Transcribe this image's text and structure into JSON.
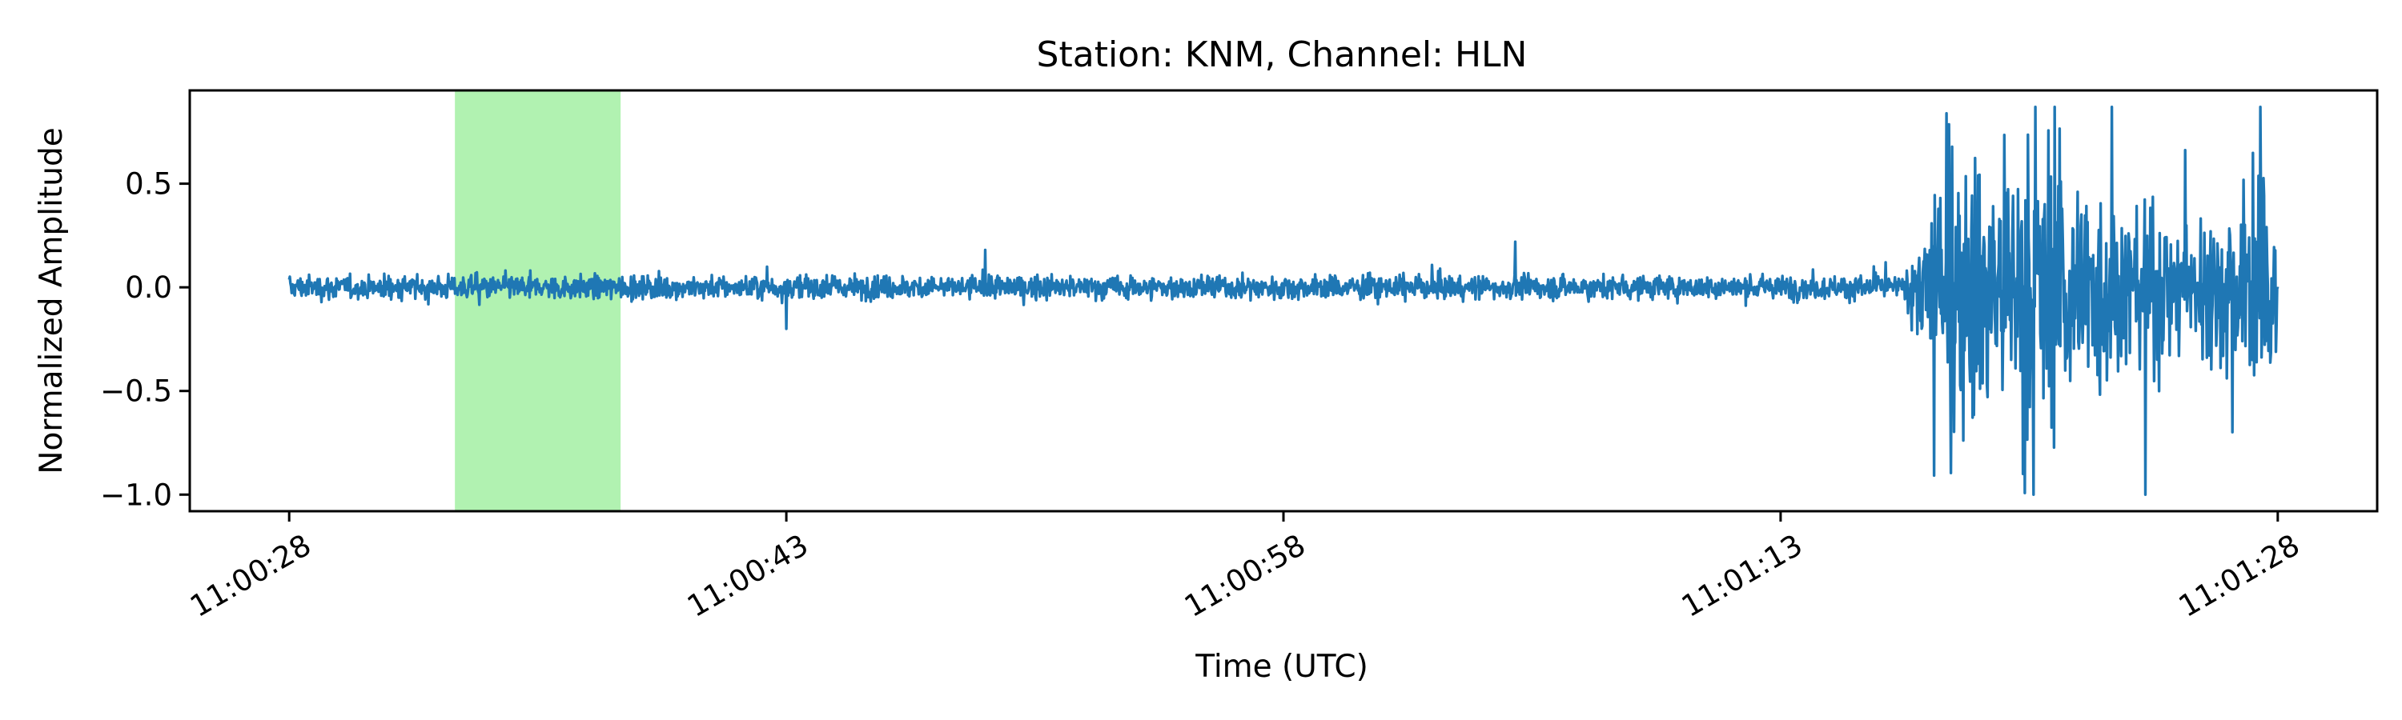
{
  "chart_data": {
    "type": "line",
    "title": "Station: KNM, Channel: HLN",
    "xlabel": "Time (UTC)",
    "ylabel": "Normalized Amplitude",
    "x_start": "11:00:28",
    "x_end": "11:01:28",
    "xlim": [
      "11:00:25",
      "11:01:31"
    ],
    "ylim": [
      -1.08,
      0.95
    ],
    "x_ticks": [
      "11:00:28",
      "11:00:43",
      "11:00:58",
      "11:01:13",
      "11:01:28"
    ],
    "y_ticks": [
      {
        "value": 0.5,
        "label": "0.5"
      },
      {
        "value": 0.0,
        "label": "0.0"
      },
      {
        "value": -0.5,
        "label": "−0.5"
      },
      {
        "value": -1.0,
        "label": "−1.0"
      }
    ],
    "highlight_window": {
      "start": "11:00:33",
      "end": "11:00:38",
      "color": "#b1f2b1"
    },
    "series": [
      {
        "color": "#1f77b4",
        "segments": [
          {
            "start": "11:00:28",
            "end": "11:01:17",
            "amplitude_range": [
              -0.2,
              0.2
            ]
          },
          {
            "start": "11:01:17",
            "end": "11:01:28",
            "amplitude_range": [
              -1.0,
              0.87
            ]
          }
        ],
        "notable_points": [
          {
            "x": "11:00:43",
            "y": -0.2
          },
          {
            "x": "11:00:49",
            "y": 0.18
          },
          {
            "x": "11:01:05",
            "y": 0.22
          },
          {
            "x": "11:01:23",
            "y": 0.87
          },
          {
            "x": "11:01:24",
            "y": -1.0
          }
        ]
      }
    ],
    "grid": false,
    "legend": "none"
  }
}
